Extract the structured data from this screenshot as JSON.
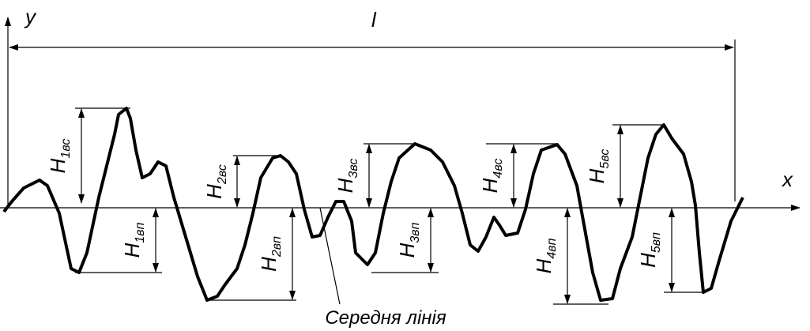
{
  "axes": {
    "y": "y",
    "x": "x",
    "length": "l"
  },
  "mean_line_label": "Середня лінія",
  "heights": [
    {
      "main": "H",
      "sub": "1вс"
    },
    {
      "main": "H",
      "sub": "1вп"
    },
    {
      "main": "H",
      "sub": "2вс"
    },
    {
      "main": "H",
      "sub": "2вп"
    },
    {
      "main": "H",
      "sub": "3вс"
    },
    {
      "main": "H",
      "sub": "3вп"
    },
    {
      "main": "H",
      "sub": "4вс"
    },
    {
      "main": "H",
      "sub": "4вп"
    },
    {
      "main": "H",
      "sub": "5вс"
    },
    {
      "main": "H",
      "sub": "5вп"
    }
  ]
}
